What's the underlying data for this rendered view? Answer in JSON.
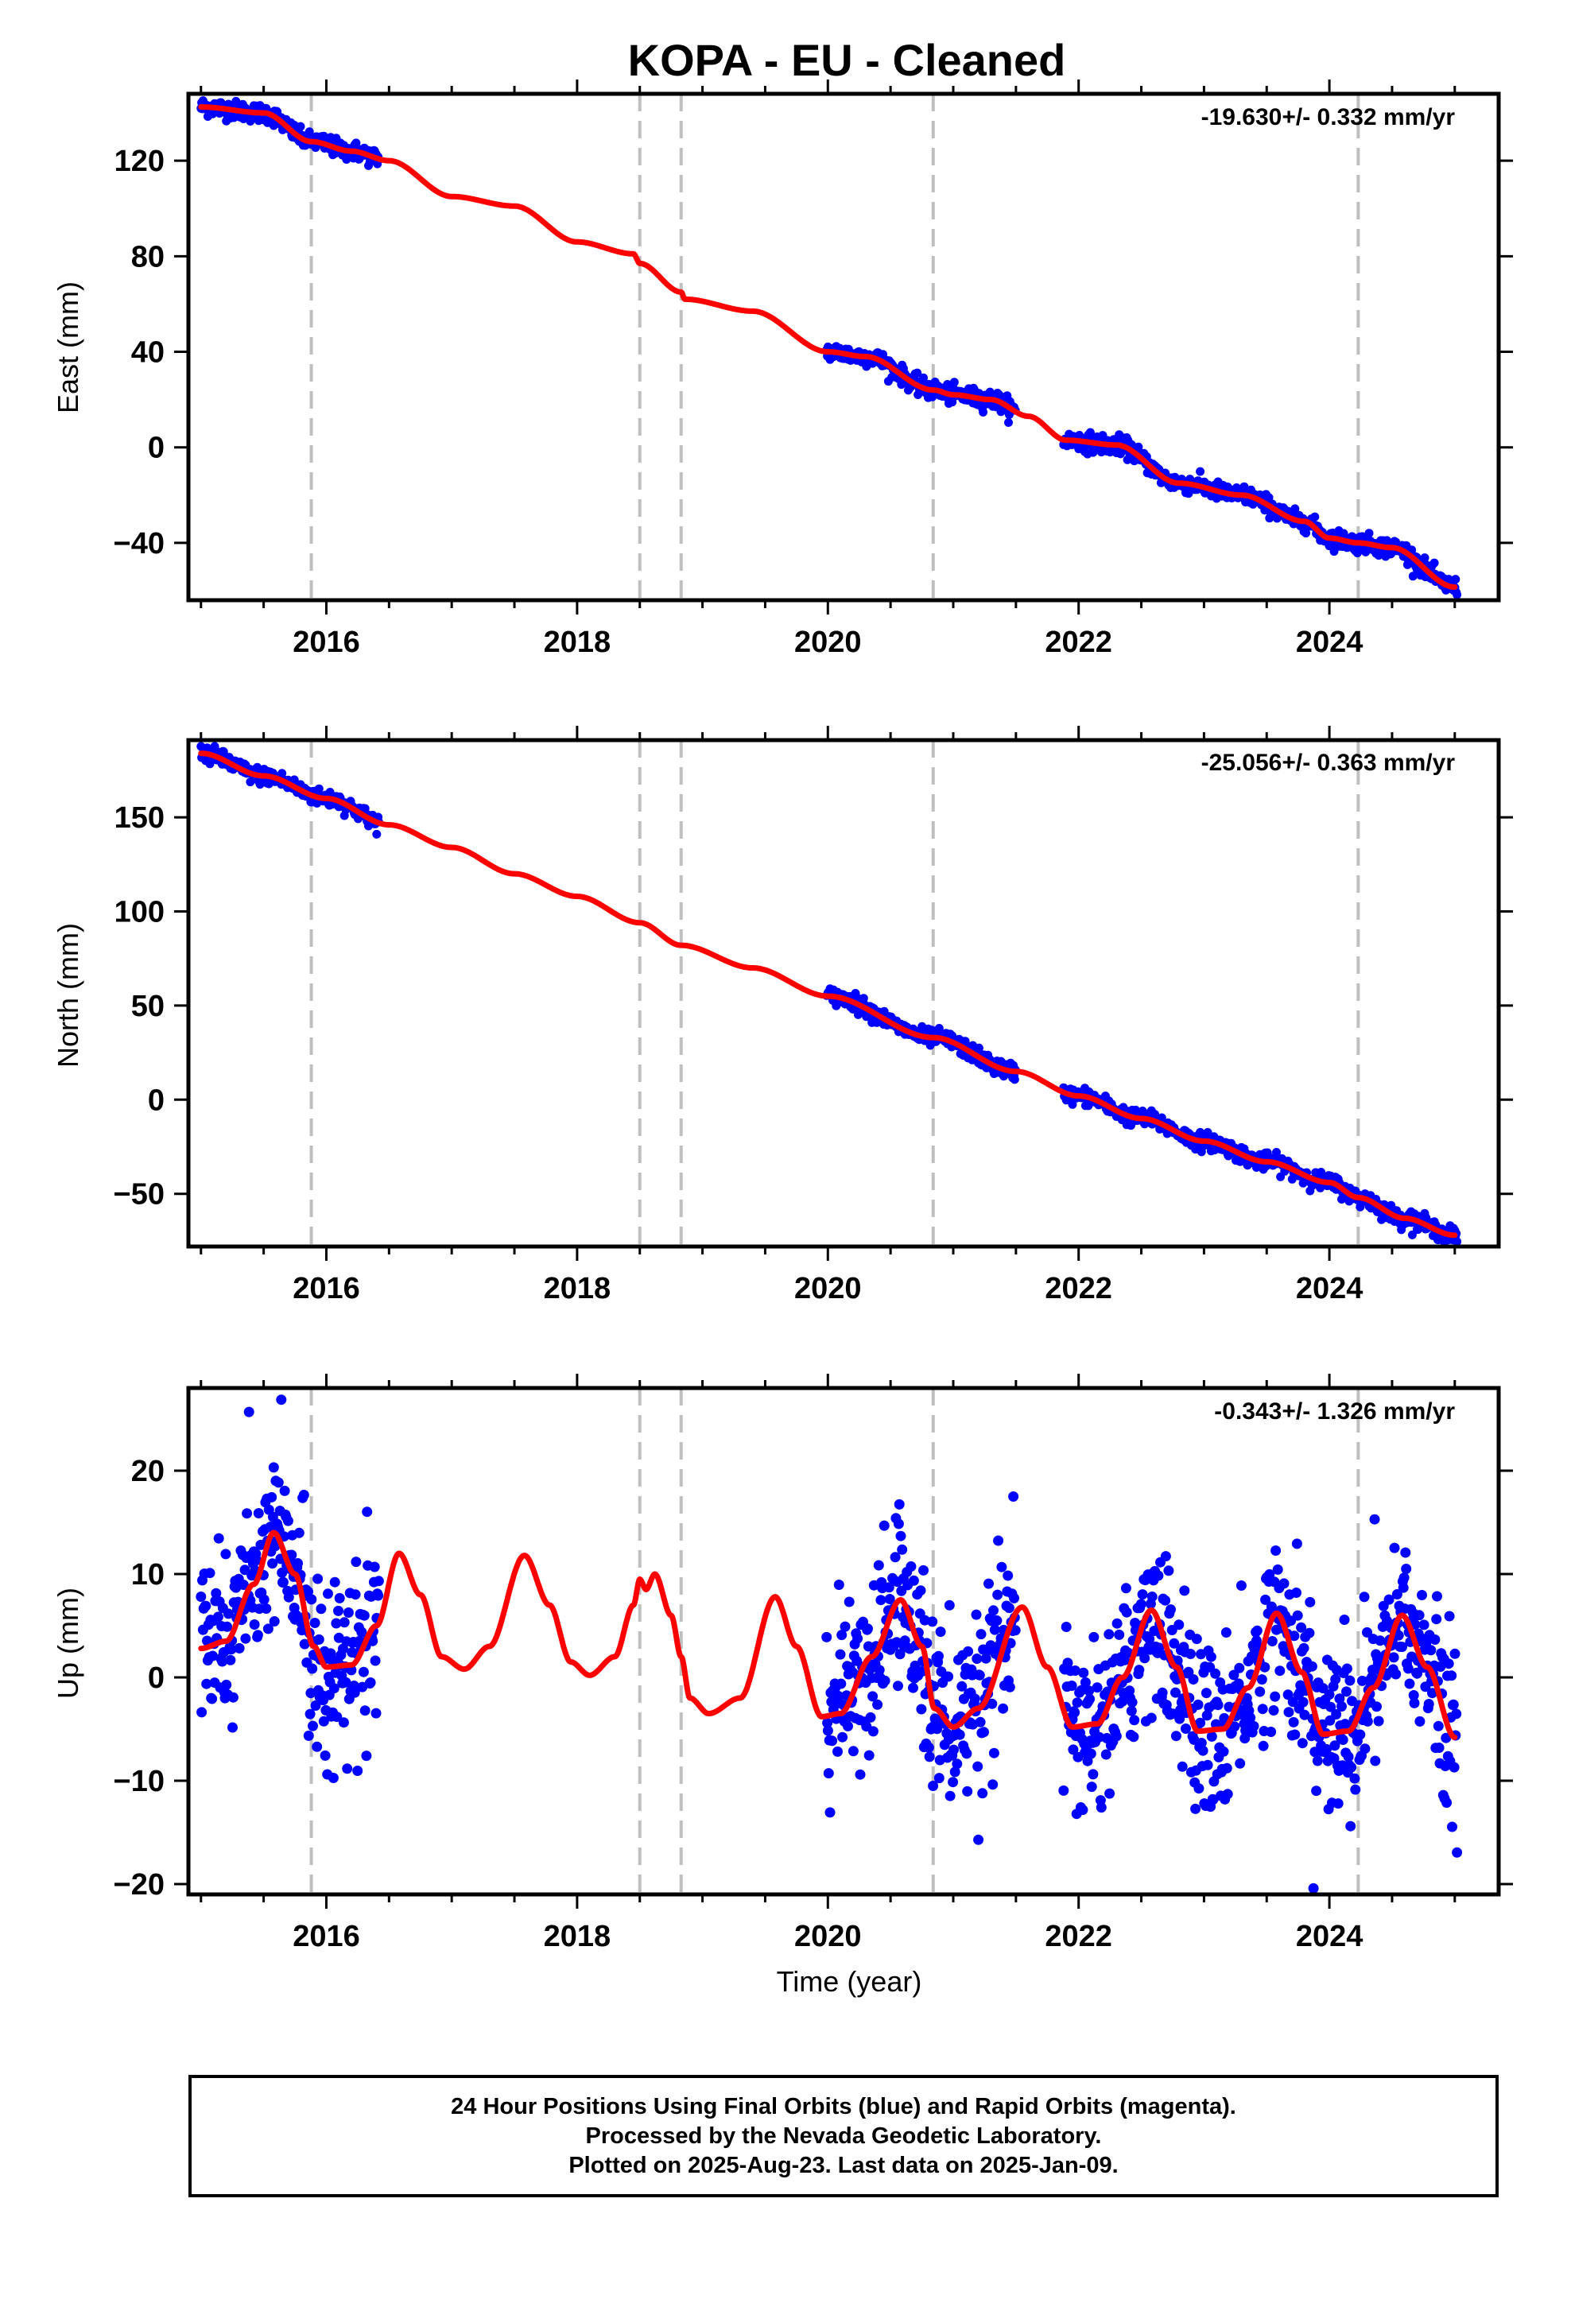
{
  "title": "KOPA  - EU - Cleaned",
  "colors": {
    "data_points": "#0000ff",
    "model_line": "#ff0000",
    "break_lines": "#bfbfbf",
    "frame": "#000000"
  },
  "footer": {
    "line1": "24 Hour Positions Using Final Orbits (blue) and Rapid Orbits (magenta).",
    "line2": "Processed by the Nevada Geodetic Laboratory.",
    "line3": "Plotted on 2025-Aug-23. Last data on 2025-Jan-09."
  },
  "chart_data": [
    {
      "type": "scatter",
      "name": "east",
      "ylabel": "East (mm)",
      "xlabel": "",
      "rate_label": "-19.630+/- 0.332 mm/yr",
      "xlim": [
        2014.9,
        2025.35
      ],
      "ylim": [
        -64,
        148
      ],
      "yticks": [
        -40,
        0,
        40,
        80,
        120
      ],
      "xticks": [
        2016,
        2018,
        2020,
        2022,
        2024
      ],
      "break_years": [
        2015.88,
        2018.5,
        2018.83,
        2020.84,
        2024.23
      ],
      "observed_segments": [
        [
          2015.0,
          2016.42
        ],
        [
          2019.99,
          2021.5
        ],
        [
          2021.88,
          2025.02
        ]
      ],
      "model_knots": [
        [
          2015.0,
          142.5
        ],
        [
          2015.5,
          140
        ],
        [
          2015.88,
          128
        ],
        [
          2016.2,
          124
        ],
        [
          2016.5,
          120
        ],
        [
          2017.0,
          105
        ],
        [
          2017.5,
          101
        ],
        [
          2018.0,
          86
        ],
        [
          2018.45,
          81
        ],
        [
          2018.5,
          77
        ],
        [
          2018.83,
          65
        ],
        [
          2018.86,
          62
        ],
        [
          2019.4,
          57
        ],
        [
          2020.0,
          40
        ],
        [
          2020.3,
          38
        ],
        [
          2020.84,
          24
        ],
        [
          2021.0,
          22
        ],
        [
          2021.3,
          20
        ],
        [
          2021.6,
          13
        ],
        [
          2021.9,
          3
        ],
        [
          2022.3,
          1
        ],
        [
          2022.8,
          -15
        ],
        [
          2023.3,
          -20
        ],
        [
          2023.8,
          -31
        ],
        [
          2024.0,
          -38
        ],
        [
          2024.23,
          -40
        ],
        [
          2024.5,
          -42
        ],
        [
          2025.0,
          -58.5
        ]
      ],
      "noise_mm": 1.9
    },
    {
      "type": "scatter",
      "name": "north",
      "ylabel": "North (mm)",
      "xlabel": "",
      "rate_label": "-25.056+/- 0.363 mm/yr",
      "xlim": [
        2014.9,
        2025.35
      ],
      "ylim": [
        -78,
        191
      ],
      "yticks": [
        -50,
        0,
        50,
        100,
        150
      ],
      "xticks": [
        2016,
        2018,
        2020,
        2022,
        2024
      ],
      "break_years": [
        2015.88,
        2018.5,
        2018.83,
        2020.84,
        2024.23
      ],
      "observed_segments": [
        [
          2015.0,
          2016.42
        ],
        [
          2019.99,
          2021.5
        ],
        [
          2021.88,
          2025.02
        ]
      ],
      "model_knots": [
        [
          2015.0,
          184
        ],
        [
          2015.5,
          172
        ],
        [
          2016.0,
          160
        ],
        [
          2016.5,
          146
        ],
        [
          2017.0,
          134
        ],
        [
          2017.5,
          120
        ],
        [
          2018.0,
          108
        ],
        [
          2018.5,
          94
        ],
        [
          2018.83,
          82
        ],
        [
          2019.4,
          70
        ],
        [
          2020.0,
          55
        ],
        [
          2020.84,
          33
        ],
        [
          2021.5,
          15
        ],
        [
          2022.0,
          2
        ],
        [
          2022.5,
          -10
        ],
        [
          2023.0,
          -22
        ],
        [
          2023.5,
          -33
        ],
        [
          2024.0,
          -44
        ],
        [
          2024.23,
          -52
        ],
        [
          2024.6,
          -63
        ],
        [
          2025.0,
          -72
        ]
      ],
      "noise_mm": 2.2
    },
    {
      "type": "scatter",
      "name": "up",
      "ylabel": "Up (mm)",
      "xlabel": "Time (year)",
      "rate_label": "-0.343+/- 1.326 mm/yr",
      "xlim": [
        2014.9,
        2025.35
      ],
      "ylim": [
        -21,
        28
      ],
      "yticks": [
        -20,
        -10,
        0,
        10,
        20
      ],
      "xticks": [
        2016,
        2018,
        2020,
        2022,
        2024
      ],
      "break_years": [
        2015.88,
        2018.5,
        2018.83,
        2020.84,
        2024.23
      ],
      "observed_segments": [
        [
          2015.0,
          2016.42
        ],
        [
          2019.99,
          2021.5
        ],
        [
          2021.88,
          2025.02
        ]
      ],
      "model_knots": [
        [
          2015.0,
          2.8
        ],
        [
          2015.2,
          3.5
        ],
        [
          2015.42,
          9
        ],
        [
          2015.58,
          14
        ],
        [
          2015.75,
          10
        ],
        [
          2015.9,
          3
        ],
        [
          2016.0,
          1
        ],
        [
          2016.2,
          1.2
        ],
        [
          2016.4,
          5
        ],
        [
          2016.58,
          12
        ],
        [
          2016.75,
          8
        ],
        [
          2016.92,
          2
        ],
        [
          2017.1,
          0.8
        ],
        [
          2017.3,
          3
        ],
        [
          2017.58,
          11.8
        ],
        [
          2017.78,
          7
        ],
        [
          2017.95,
          1.5
        ],
        [
          2018.1,
          0.2
        ],
        [
          2018.3,
          2
        ],
        [
          2018.45,
          7
        ],
        [
          2018.5,
          9.5
        ],
        [
          2018.55,
          8.5
        ],
        [
          2018.62,
          10
        ],
        [
          2018.75,
          6
        ],
        [
          2018.83,
          2
        ],
        [
          2018.9,
          -2
        ],
        [
          2019.05,
          -3.5
        ],
        [
          2019.3,
          -2
        ],
        [
          2019.58,
          7.8
        ],
        [
          2019.75,
          3
        ],
        [
          2019.95,
          -3.8
        ],
        [
          2020.1,
          -3.5
        ],
        [
          2020.35,
          2
        ],
        [
          2020.58,
          7.5
        ],
        [
          2020.75,
          3
        ],
        [
          2020.85,
          -3
        ],
        [
          2021.0,
          -4.8
        ],
        [
          2021.2,
          -3
        ],
        [
          2021.55,
          6.8
        ],
        [
          2021.75,
          1
        ],
        [
          2021.95,
          -4.8
        ],
        [
          2022.15,
          -4.5
        ],
        [
          2022.35,
          0
        ],
        [
          2022.58,
          6.5
        ],
        [
          2022.78,
          1
        ],
        [
          2022.95,
          -5.2
        ],
        [
          2023.15,
          -5
        ],
        [
          2023.35,
          -1
        ],
        [
          2023.58,
          6.2
        ],
        [
          2023.78,
          0.5
        ],
        [
          2023.95,
          -5.5
        ],
        [
          2024.15,
          -5.2
        ],
        [
          2024.35,
          -1
        ],
        [
          2024.58,
          6
        ],
        [
          2024.78,
          1
        ],
        [
          2025.0,
          -5.8
        ]
      ],
      "noise_mm": 4.2
    }
  ]
}
